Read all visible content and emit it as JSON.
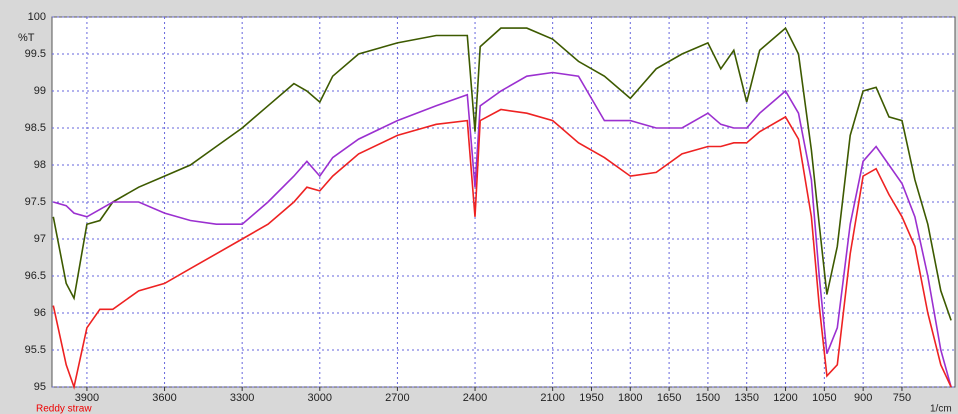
{
  "chart_data": {
    "type": "line",
    "y_label": "%T",
    "x_label": "1/cm",
    "sample_label": "Reddy straw",
    "x": [
      4030,
      3980,
      3950,
      3900,
      3850,
      3800,
      3700,
      3600,
      3500,
      3400,
      3300,
      3200,
      3100,
      3050,
      3000,
      2950,
      2850,
      2700,
      2550,
      2430,
      2400,
      2380,
      2300,
      2200,
      2100,
      2000,
      1900,
      1800,
      1700,
      1600,
      1500,
      1450,
      1400,
      1350,
      1300,
      1200,
      1150,
      1100,
      1070,
      1040,
      1000,
      950,
      900,
      850,
      800,
      750,
      700,
      650,
      600,
      560
    ],
    "series": [
      {
        "color": "#3d5a00",
        "values": [
          97.3,
          96.4,
          96.2,
          97.2,
          97.25,
          97.5,
          97.7,
          97.85,
          98.0,
          98.25,
          98.5,
          98.8,
          99.1,
          99.0,
          98.85,
          99.2,
          99.5,
          99.65,
          99.75,
          99.75,
          98.45,
          99.6,
          99.85,
          99.85,
          99.7,
          99.4,
          99.2,
          98.9,
          99.3,
          99.5,
          99.65,
          99.3,
          99.55,
          98.85,
          99.55,
          99.85,
          99.5,
          98.2,
          97.2,
          96.25,
          96.9,
          98.4,
          99.0,
          99.05,
          98.65,
          98.6,
          97.8,
          97.2,
          96.3,
          95.9
        ]
      },
      {
        "color": "#9b30d0",
        "values": [
          97.5,
          97.45,
          97.35,
          97.3,
          97.4,
          97.5,
          97.5,
          97.35,
          97.25,
          97.2,
          97.2,
          97.5,
          97.85,
          98.05,
          97.85,
          98.1,
          98.35,
          98.6,
          98.8,
          98.95,
          97.7,
          98.8,
          99.0,
          99.2,
          99.25,
          99.2,
          98.6,
          98.6,
          98.5,
          98.5,
          98.7,
          98.55,
          98.5,
          98.5,
          98.7,
          99.0,
          98.7,
          97.8,
          96.5,
          95.45,
          95.8,
          97.2,
          98.05,
          98.25,
          98.0,
          97.75,
          97.3,
          96.5,
          95.5,
          95.0
        ]
      },
      {
        "color": "#ee2222",
        "values": [
          96.1,
          95.3,
          95.0,
          95.8,
          96.05,
          96.05,
          96.3,
          96.4,
          96.6,
          96.8,
          97.0,
          97.2,
          97.5,
          97.7,
          97.65,
          97.85,
          98.15,
          98.4,
          98.55,
          98.6,
          97.3,
          98.6,
          98.75,
          98.7,
          98.6,
          98.3,
          98.1,
          97.85,
          97.9,
          98.15,
          98.25,
          98.25,
          98.3,
          98.3,
          98.45,
          98.65,
          98.35,
          97.3,
          96.1,
          95.15,
          95.3,
          96.8,
          97.85,
          97.95,
          97.6,
          97.3,
          96.9,
          96.0,
          95.3,
          95.0
        ]
      }
    ],
    "xlim": [
      4035,
      545
    ],
    "xticks": [
      3900,
      3600,
      3300,
      3000,
      2700,
      2400,
      2100,
      1950,
      1800,
      1650,
      1500,
      1350,
      1200,
      1050,
      900,
      750
    ],
    "ylim": [
      95,
      100
    ],
    "yticks": [
      95,
      95.5,
      96,
      96.5,
      97,
      97.5,
      98,
      98.5,
      99,
      99.5,
      100
    ],
    "grid": true
  }
}
